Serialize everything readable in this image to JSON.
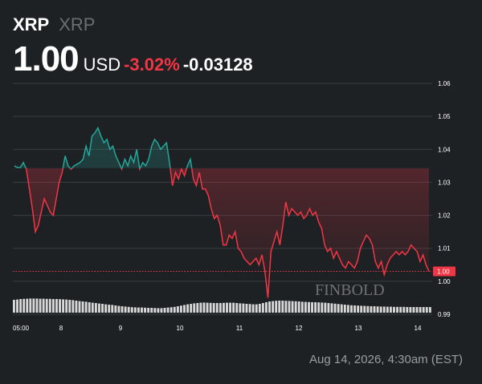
{
  "header": {
    "symbol": "XRP",
    "symbol_secondary": "XRP",
    "price": "1.00",
    "currency": "USD",
    "change_percent": "-3.02%",
    "change_abs": "-0.03128"
  },
  "watermark": "FINBOLD",
  "timestamp": "Aug 14, 2026, 4:30am (EST)",
  "colors": {
    "background": "#1e2124",
    "up": "#26a69a",
    "down": "#f23645",
    "grid": "#3a3d41",
    "volume": "#d8d8d8"
  },
  "chart_data": {
    "type": "line",
    "title": "",
    "xlabel": "",
    "ylabel": "",
    "x_ticks": [
      "05:00",
      "8",
      "9",
      "10",
      "11",
      "12",
      "13",
      "14"
    ],
    "y_ticks": [
      "1.06",
      "1.05",
      "1.04",
      "1.03",
      "1.02",
      "1.01",
      "1.00",
      "0.99"
    ],
    "ylim": [
      0.99,
      1.06
    ],
    "current_price_label": "1.00",
    "current_price": 1.003,
    "reference_level": 1.0343,
    "grid": true,
    "series": [
      {
        "values": [
          1.035,
          1.0345,
          1.0345,
          1.036,
          1.034,
          1.028,
          1.022,
          1.015,
          1.017,
          1.021,
          1.025,
          1.023,
          1.021,
          1.02,
          1.025,
          1.03,
          1.033,
          1.038,
          1.035,
          1.034,
          1.035,
          1.0355,
          1.036,
          1.037,
          1.041,
          1.038,
          1.044,
          1.045,
          1.0465,
          1.044,
          1.042,
          1.043,
          1.04,
          1.041,
          1.038,
          1.036,
          1.034,
          1.037,
          1.035,
          1.038,
          1.036,
          1.04,
          1.034,
          1.036,
          1.035,
          1.037,
          1.041,
          1.043,
          1.042,
          1.04,
          1.041,
          1.042,
          1.036,
          1.029,
          1.033,
          1.031,
          1.034,
          1.032,
          1.035,
          1.037,
          1.031,
          1.029,
          1.033,
          1.028,
          1.028,
          1.026,
          1.022,
          1.019,
          1.02,
          1.017,
          1.011,
          1.011,
          1.014,
          1.013,
          1.015,
          1.01,
          1.009,
          1.007,
          1.006,
          1.005,
          1.006,
          1.007,
          1.005,
          1.008,
          1.003,
          0.995,
          1.009,
          1.012,
          1.015,
          1.011,
          1.017,
          1.024,
          1.02,
          1.022,
          1.021,
          1.02,
          1.021,
          1.019,
          1.02,
          1.022,
          1.02,
          1.021,
          1.018,
          1.016,
          1.011,
          1.009,
          1.01,
          1.007,
          1.009,
          1.007,
          1.005,
          1.004,
          1.006,
          1.005,
          1.004,
          1.006,
          1.01,
          1.012,
          1.014,
          1.013,
          1.011,
          1.006,
          1.004,
          1.006,
          1.002,
          1.005,
          1.007,
          1.008,
          1.009,
          1.008,
          1.009,
          1.008,
          1.009,
          1.011,
          1.01,
          1.009,
          1.006,
          1.008,
          1.005,
          1.003
        ]
      },
      {
        "type": "volume",
        "values": [
          0.8,
          0.82,
          0.85,
          0.86,
          0.87,
          0.88,
          0.88,
          0.88,
          0.87,
          0.87,
          0.86,
          0.86,
          0.85,
          0.85,
          0.84,
          0.83,
          0.82,
          0.8,
          0.78,
          0.75,
          0.72,
          0.7,
          0.68,
          0.65,
          0.62,
          0.6,
          0.57,
          0.55,
          0.52,
          0.5,
          0.48,
          0.45,
          0.42,
          0.4,
          0.38,
          0.36,
          0.34,
          0.33,
          0.32,
          0.32,
          0.31,
          0.3,
          0.3,
          0.29,
          0.28,
          0.28,
          0.3,
          0.32,
          0.34,
          0.36,
          0.4,
          0.44,
          0.48,
          0.52,
          0.55,
          0.58,
          0.6,
          0.62,
          0.63,
          0.62,
          0.61,
          0.6,
          0.6,
          0.6,
          0.61,
          0.62,
          0.62,
          0.62,
          0.6,
          0.58,
          0.57,
          0.55,
          0.54,
          0.52,
          0.52,
          0.55,
          0.6,
          0.65,
          0.7,
          0.72,
          0.74,
          0.75,
          0.75,
          0.74,
          0.73,
          0.72,
          0.71,
          0.7,
          0.68,
          0.67,
          0.66,
          0.65,
          0.65,
          0.64,
          0.63,
          0.62,
          0.6,
          0.58,
          0.56,
          0.54,
          0.52,
          0.5,
          0.48,
          0.46,
          0.45,
          0.44,
          0.43,
          0.42,
          0.41,
          0.4,
          0.4,
          0.39,
          0.38,
          0.38,
          0.37,
          0.37,
          0.36,
          0.36,
          0.36,
          0.36,
          0.35,
          0.35,
          0.35,
          0.35,
          0.35,
          0.35,
          0.35,
          0.35
        ]
      }
    ]
  }
}
